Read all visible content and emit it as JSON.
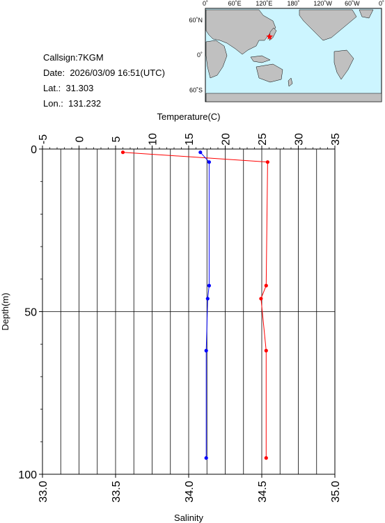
{
  "station": {
    "callsign_label": "Callsign:",
    "callsign": "7KGM",
    "date_label": "Date:",
    "date": "2026/03/09 16:51(UTC)",
    "lat_label": "Lat.:",
    "lat": "31.303",
    "lon_label": "Lon.:",
    "lon": "131.232"
  },
  "map": {
    "top_ticks": [
      "0˚",
      "60˚E",
      "120˚E",
      "180˚",
      "120˚W",
      "60˚W",
      "0˚"
    ],
    "left_ticks": [
      "60˚N",
      "0˚",
      "60˚S"
    ],
    "station_marker": {
      "lon": 131.232,
      "lat": 31.303
    },
    "colors": {
      "ocean": "#ccf5ff",
      "land": "#c0c0c0",
      "marker": "#ff0000"
    }
  },
  "chart_data": {
    "type": "line",
    "title": "",
    "top_axis": {
      "label": "Temperature(C)",
      "range": [
        -5,
        35
      ],
      "ticks": [
        "-5",
        "0",
        "5",
        "10",
        "15",
        "20",
        "25",
        "30",
        "35"
      ]
    },
    "bottom_axis": {
      "label": "Salinity",
      "range": [
        33.0,
        35.0
      ],
      "ticks": [
        "33.0",
        "33.5",
        "34.0",
        "34.5",
        "35.0"
      ]
    },
    "left_axis": {
      "label": "Depth(m)",
      "range": [
        0,
        100
      ],
      "inverted": true,
      "ticks": [
        "0",
        "50",
        "100"
      ]
    },
    "grid": {
      "vertical": true,
      "horizontal_at": [
        50
      ]
    },
    "series": [
      {
        "axis": "temperature",
        "color": "#ff0000",
        "points": [
          {
            "x": 6.0,
            "depth": 1
          },
          {
            "x": 25.8,
            "depth": 4
          },
          {
            "x": 25.6,
            "depth": 42
          },
          {
            "x": 24.9,
            "depth": 46
          },
          {
            "x": 25.6,
            "depth": 62
          },
          {
            "x": 25.6,
            "depth": 95
          }
        ]
      },
      {
        "axis": "salinity",
        "color": "#0000ff",
        "points": [
          {
            "x": 34.08,
            "depth": 1
          },
          {
            "x": 34.14,
            "depth": 4
          },
          {
            "x": 34.14,
            "depth": 42
          },
          {
            "x": 34.13,
            "depth": 46
          },
          {
            "x": 34.12,
            "depth": 62
          },
          {
            "x": 34.12,
            "depth": 95
          }
        ]
      }
    ]
  }
}
